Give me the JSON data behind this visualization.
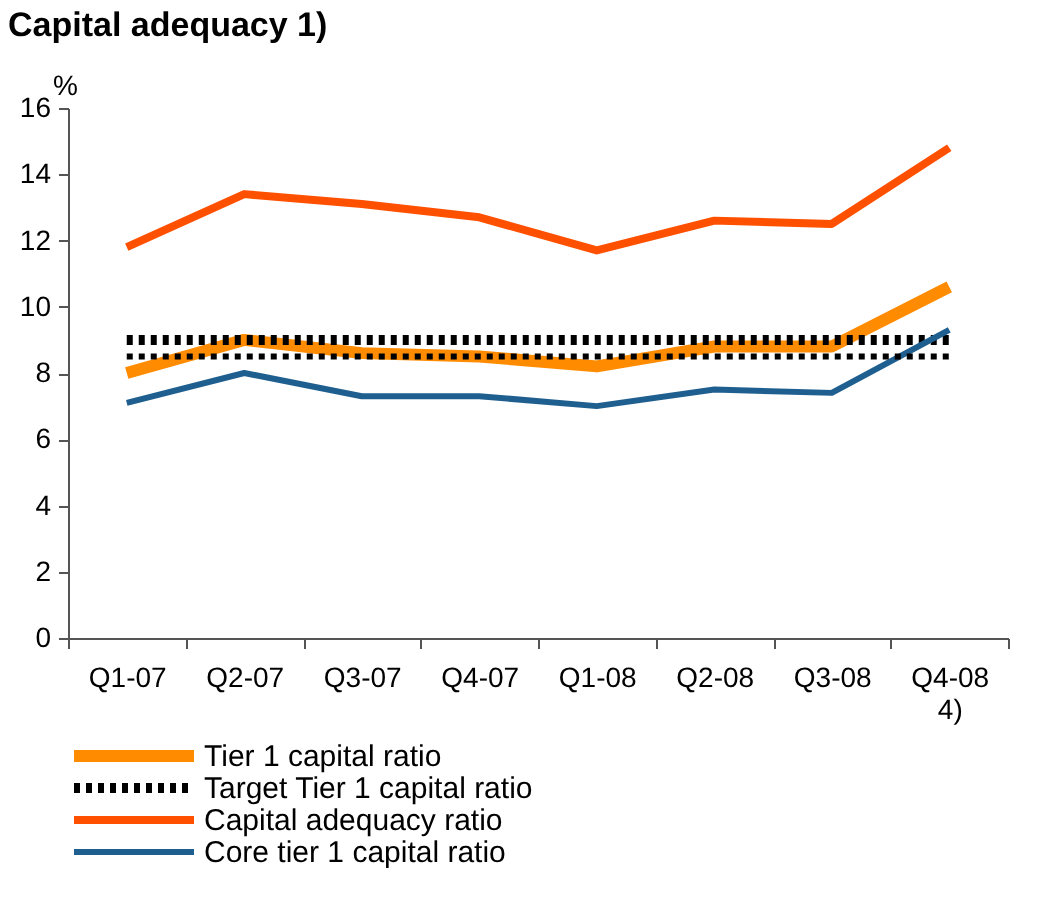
{
  "chart_data": {
    "type": "line",
    "title": "Capital adequacy 1)",
    "ylabel": "%",
    "categories": [
      "Q1-07",
      "Q2-07",
      "Q3-07",
      "Q4-07",
      "Q1-08",
      "Q2-08",
      "Q3-08",
      "Q4-08 4)"
    ],
    "ylim": [
      0,
      16
    ],
    "yticks": [
      0,
      2,
      4,
      6,
      8,
      10,
      12,
      14,
      16
    ],
    "grid": false,
    "legend": "bottom",
    "marker": "none",
    "series": [
      {
        "name": "Tier 1 capital ratio",
        "color": "#ff8c00",
        "line_style": "solid",
        "values": [
          8.0,
          9.0,
          8.6,
          8.5,
          8.2,
          8.8,
          8.8,
          10.6
        ]
      },
      {
        "name": "Target Tier 1 capital ratio",
        "color": "#000000",
        "line_style": "dotted",
        "values": [
          9.0,
          9.0,
          9.0,
          9.0,
          9.0,
          9.0,
          9.0,
          9.0
        ]
      },
      {
        "color": "#000000",
        "line_style": "dotted",
        "values": [
          8.5,
          8.5,
          8.5,
          8.5,
          8.5,
          8.5,
          8.5,
          8.5
        ]
      },
      {
        "name": "Capital adequacy ratio",
        "color": "#ff5000",
        "line_style": "solid",
        "values": [
          11.8,
          13.4,
          13.1,
          12.7,
          11.7,
          12.6,
          12.5,
          14.8
        ]
      },
      {
        "name": "Core tier 1 capital ratio",
        "color": "#1f5f8f",
        "line_style": "solid",
        "values": [
          7.1,
          8.0,
          7.3,
          7.3,
          7.0,
          7.5,
          7.4,
          9.3
        ]
      }
    ]
  }
}
